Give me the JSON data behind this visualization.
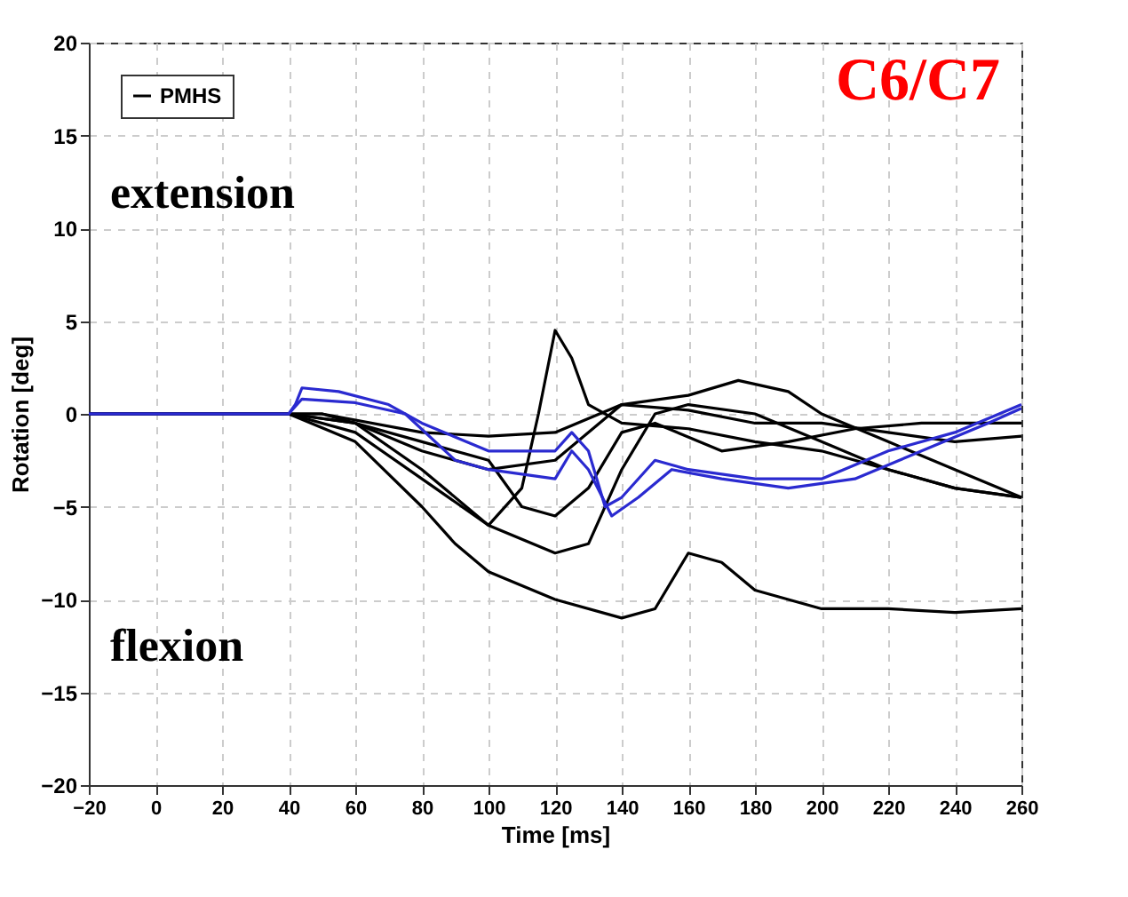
{
  "chart_data": {
    "type": "line",
    "xlabel": "Time [ms]",
    "ylabel": "Rotation [deg]",
    "xlim": [
      -20,
      260
    ],
    "xticks": [
      -20,
      0,
      20,
      40,
      60,
      80,
      100,
      120,
      140,
      160,
      180,
      200,
      220,
      240,
      260
    ],
    "ylim": [
      -20,
      20
    ],
    "yticks": [
      -20,
      -15,
      -10,
      -5,
      0,
      5,
      10,
      15,
      20
    ],
    "grid": true,
    "legend": "top left",
    "marker": "none",
    "line_style": "solid",
    "annotations": [
      "C6/C7",
      "extension",
      "flexion"
    ],
    "series": [
      {
        "name": "PMHS",
        "color": "#000000",
        "x": [
          -20,
          40,
          60,
          80,
          100,
          110,
          115,
          120,
          125,
          130,
          140,
          160,
          180,
          200,
          220,
          240,
          260
        ],
        "values": [
          0,
          0,
          -0.5,
          -3,
          -6,
          -4,
          0,
          4.5,
          3,
          0.5,
          -0.5,
          -0.8,
          -1.5,
          -2,
          -3,
          -4,
          -4.5
        ]
      },
      {
        "color": "#000000",
        "x": [
          -20,
          40,
          60,
          80,
          90,
          100,
          120,
          140,
          150,
          160,
          170,
          180,
          200,
          220,
          240,
          260
        ],
        "values": [
          0,
          0,
          -1.5,
          -5,
          -7,
          -8.5,
          -10,
          -11,
          -10.5,
          -7.5,
          -8,
          -9.5,
          -10.5,
          -10.5,
          -10.7,
          -10.5
        ]
      },
      {
        "color": "#000000",
        "x": [
          -20,
          40,
          60,
          80,
          100,
          120,
          130,
          140,
          150,
          160,
          180,
          200,
          220,
          240,
          260
        ],
        "values": [
          0,
          0,
          -1,
          -3.5,
          -6,
          -7.5,
          -7,
          -3,
          0,
          0.5,
          0,
          -1.5,
          -3,
          -4,
          -4.5
        ]
      },
      {
        "color": "#000000",
        "x": [
          -20,
          40,
          60,
          80,
          100,
          120,
          140,
          160,
          175,
          190,
          200,
          220,
          240,
          260
        ],
        "values": [
          0,
          0,
          -0.5,
          -2,
          -3,
          -2.5,
          0.5,
          1,
          1.8,
          1.2,
          0,
          -1.5,
          -3,
          -4.5
        ]
      },
      {
        "color": "#000000",
        "x": [
          -20,
          50,
          80,
          100,
          120,
          140,
          160,
          180,
          200,
          220,
          240,
          260
        ],
        "values": [
          0,
          0,
          -1,
          -1.2,
          -1,
          0.5,
          0.2,
          -0.5,
          -0.5,
          -1,
          -1.5,
          -1.2
        ]
      },
      {
        "color": "#000000",
        "x": [
          -20,
          50,
          80,
          100,
          110,
          120,
          130,
          140,
          150,
          170,
          190,
          210,
          230,
          260
        ],
        "values": [
          0,
          0,
          -1.5,
          -2.5,
          -5,
          -5.5,
          -4,
          -1,
          -0.5,
          -2,
          -1.5,
          -0.8,
          -0.5,
          -0.5
        ]
      },
      {
        "color": "#2a2ad0",
        "x": [
          -20,
          40,
          42,
          44,
          55,
          70,
          80,
          100,
          120,
          125,
          130,
          135,
          140,
          150,
          160,
          180,
          200,
          220,
          240,
          260
        ],
        "values": [
          0,
          0,
          0.5,
          1.4,
          1.2,
          0.5,
          -0.5,
          -2,
          -2,
          -1,
          -2,
          -5,
          -4.5,
          -2.5,
          -3,
          -3.5,
          -3.5,
          -2,
          -1,
          0.5
        ]
      },
      {
        "color": "#2a2ad0",
        "x": [
          -20,
          40,
          44,
          60,
          75,
          90,
          100,
          120,
          125,
          130,
          137,
          145,
          155,
          170,
          190,
          210,
          230,
          250,
          260
        ],
        "values": [
          0,
          0,
          0.8,
          0.6,
          0,
          -2.5,
          -3,
          -3.5,
          -2,
          -3,
          -5.5,
          -4.5,
          -3,
          -3.5,
          -4,
          -3.5,
          -2,
          -0.5,
          0.3
        ]
      }
    ]
  }
}
